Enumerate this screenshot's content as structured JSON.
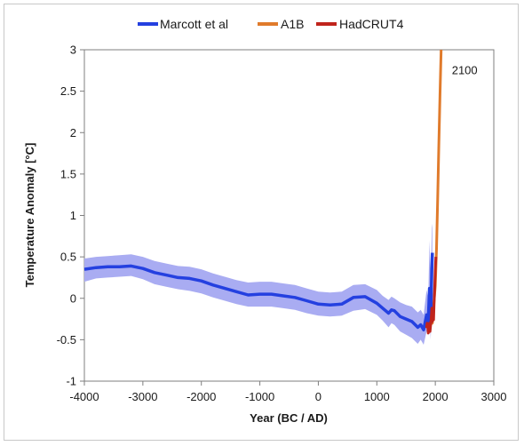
{
  "chart_data": {
    "type": "line",
    "title": "",
    "xlabel": "Year (BC / AD)",
    "ylabel": "Temperature Anomaly [°C]",
    "xlim": [
      -4000,
      3000
    ],
    "ylim": [
      -1,
      3
    ],
    "xticks": [
      -4000,
      -3000,
      -2000,
      -1000,
      0,
      1000,
      2000,
      3000
    ],
    "yticks": [
      -1,
      -0.5,
      0,
      0.5,
      1,
      1.5,
      2,
      2.5,
      3
    ],
    "grid": false,
    "legend_position": "top",
    "annotation": {
      "text": "2100",
      "x": 2100,
      "y": 2.75
    },
    "series": [
      {
        "name": "Marcott et al",
        "color": "#2440e0",
        "band_color": "#a9acf2",
        "x": [
          -4000,
          -3800,
          -3600,
          -3400,
          -3200,
          -3000,
          -2800,
          -2600,
          -2400,
          -2200,
          -2000,
          -1800,
          -1600,
          -1400,
          -1200,
          -1000,
          -800,
          -600,
          -400,
          -200,
          0,
          200,
          400,
          600,
          800,
          1000,
          1100,
          1200,
          1250,
          1300,
          1400,
          1500,
          1600,
          1700,
          1750,
          1800,
          1850,
          1880,
          1900,
          1920,
          1940,
          1950
        ],
        "values": [
          0.35,
          0.37,
          0.38,
          0.38,
          0.39,
          0.36,
          0.31,
          0.28,
          0.25,
          0.24,
          0.21,
          0.16,
          0.12,
          0.08,
          0.04,
          0.05,
          0.05,
          0.03,
          0.01,
          -0.03,
          -0.07,
          -0.08,
          -0.07,
          0.01,
          0.02,
          -0.06,
          -0.12,
          -0.18,
          -0.14,
          -0.15,
          -0.22,
          -0.25,
          -0.28,
          -0.35,
          -0.32,
          -0.38,
          -0.2,
          -0.28,
          0.12,
          -0.3,
          0.35,
          0.55
        ],
        "lower": [
          0.2,
          0.24,
          0.25,
          0.26,
          0.27,
          0.23,
          0.17,
          0.14,
          0.11,
          0.09,
          0.06,
          0.01,
          -0.03,
          -0.07,
          -0.1,
          -0.1,
          -0.1,
          -0.12,
          -0.14,
          -0.18,
          -0.21,
          -0.22,
          -0.21,
          -0.15,
          -0.13,
          -0.2,
          -0.27,
          -0.35,
          -0.3,
          -0.32,
          -0.4,
          -0.44,
          -0.48,
          -0.55,
          -0.5,
          -0.56,
          -0.4,
          -0.45,
          -0.1,
          -0.5,
          -0.1,
          0.1
        ],
        "upper": [
          0.48,
          0.5,
          0.51,
          0.52,
          0.53,
          0.5,
          0.45,
          0.42,
          0.39,
          0.38,
          0.35,
          0.3,
          0.26,
          0.22,
          0.19,
          0.2,
          0.2,
          0.18,
          0.16,
          0.12,
          0.08,
          0.07,
          0.08,
          0.16,
          0.17,
          0.1,
          0.03,
          -0.02,
          0.02,
          0.0,
          -0.05,
          -0.08,
          -0.1,
          -0.17,
          -0.14,
          -0.2,
          0.1,
          0.0,
          0.7,
          0.2,
          0.85,
          0.9
        ]
      },
      {
        "name": "A1B",
        "color": "#e07b2c",
        "x": [
          1900,
          1950,
          2000,
          2020,
          2040,
          2060,
          2080,
          2100
        ],
        "values": [
          -0.32,
          -0.3,
          0.15,
          0.6,
          1.2,
          1.85,
          2.45,
          3.0
        ]
      },
      {
        "name": "HadCRUT4",
        "color": "#c0241c",
        "x": [
          1850,
          1860,
          1870,
          1880,
          1890,
          1900,
          1910,
          1920,
          1930,
          1940,
          1950,
          1960,
          1970,
          1980,
          1990,
          2000,
          2010
        ],
        "values": [
          -0.36,
          -0.3,
          -0.34,
          -0.42,
          -0.38,
          -0.3,
          -0.4,
          -0.32,
          -0.24,
          -0.12,
          -0.28,
          -0.22,
          -0.26,
          -0.05,
          0.15,
          0.35,
          0.5
        ]
      }
    ]
  }
}
